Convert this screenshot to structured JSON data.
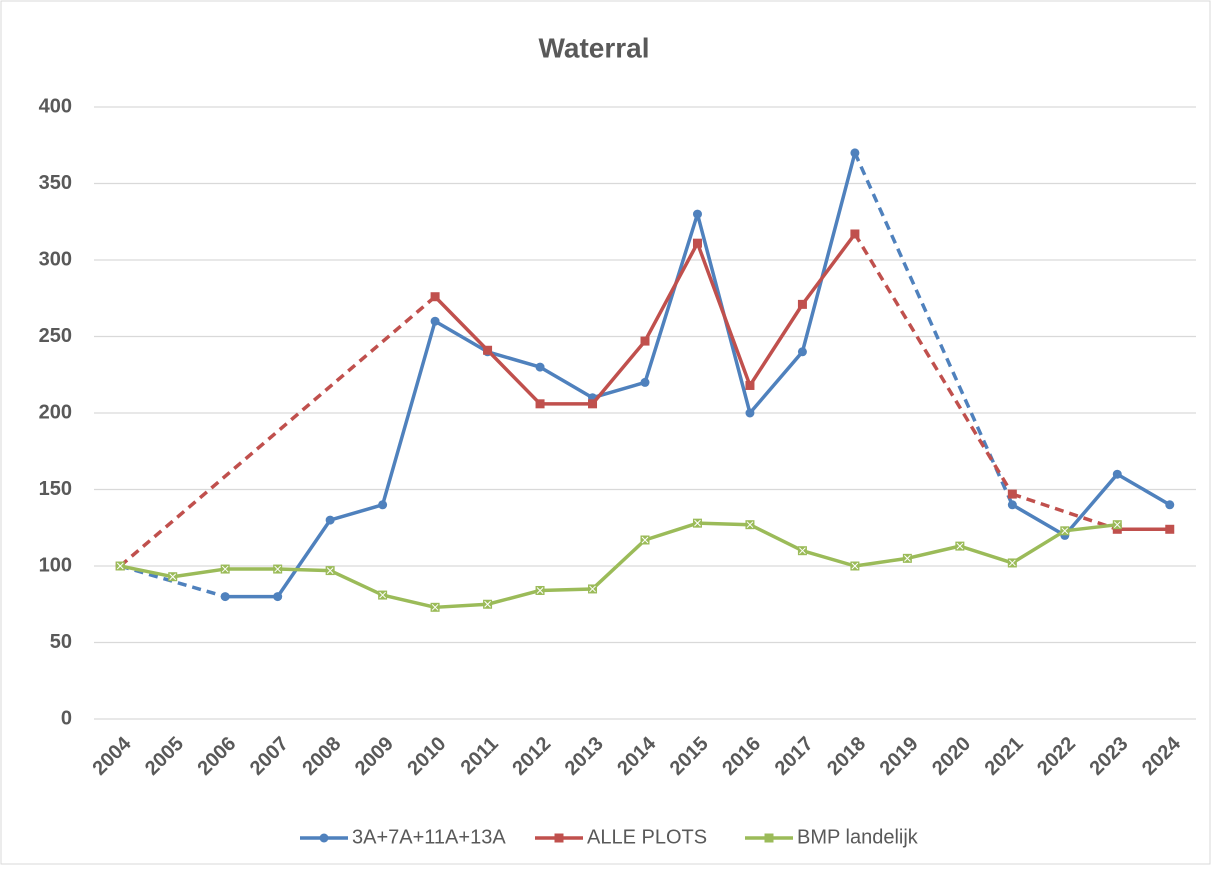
{
  "chart_data": {
    "type": "line",
    "title": "Waterral",
    "categories": [
      "2004",
      "2005",
      "2006",
      "2007",
      "2008",
      "2009",
      "2010",
      "2011",
      "2012",
      "2013",
      "2014",
      "2015",
      "2016",
      "2017",
      "2018",
      "2019",
      "2020",
      "2021",
      "2022",
      "2023",
      "2024"
    ],
    "series": [
      {
        "name": "3A+7A+11A+13A",
        "color": "#4f81bd",
        "values": [
          100,
          null,
          80,
          80,
          130,
          140,
          260,
          240,
          230,
          210,
          220,
          330,
          200,
          240,
          370,
          null,
          null,
          140,
          120,
          160,
          140
        ]
      },
      {
        "name": "ALLE PLOTS",
        "color": "#c0504d",
        "values": [
          100,
          null,
          null,
          null,
          null,
          null,
          276,
          241,
          206,
          206,
          247,
          311,
          218,
          271,
          317,
          null,
          null,
          147,
          null,
          124,
          124
        ]
      },
      {
        "name": "BMP landelijk",
        "color": "#9bbb59",
        "values": [
          100,
          93,
          98,
          98,
          97,
          81,
          73,
          75,
          84,
          85,
          117,
          128,
          127,
          110,
          100,
          105,
          113,
          102,
          123,
          127,
          null
        ]
      }
    ],
    "ylim": [
      0,
      400
    ],
    "yticks": [
      0,
      50,
      100,
      150,
      200,
      250,
      300,
      350,
      400
    ],
    "grid": true
  }
}
